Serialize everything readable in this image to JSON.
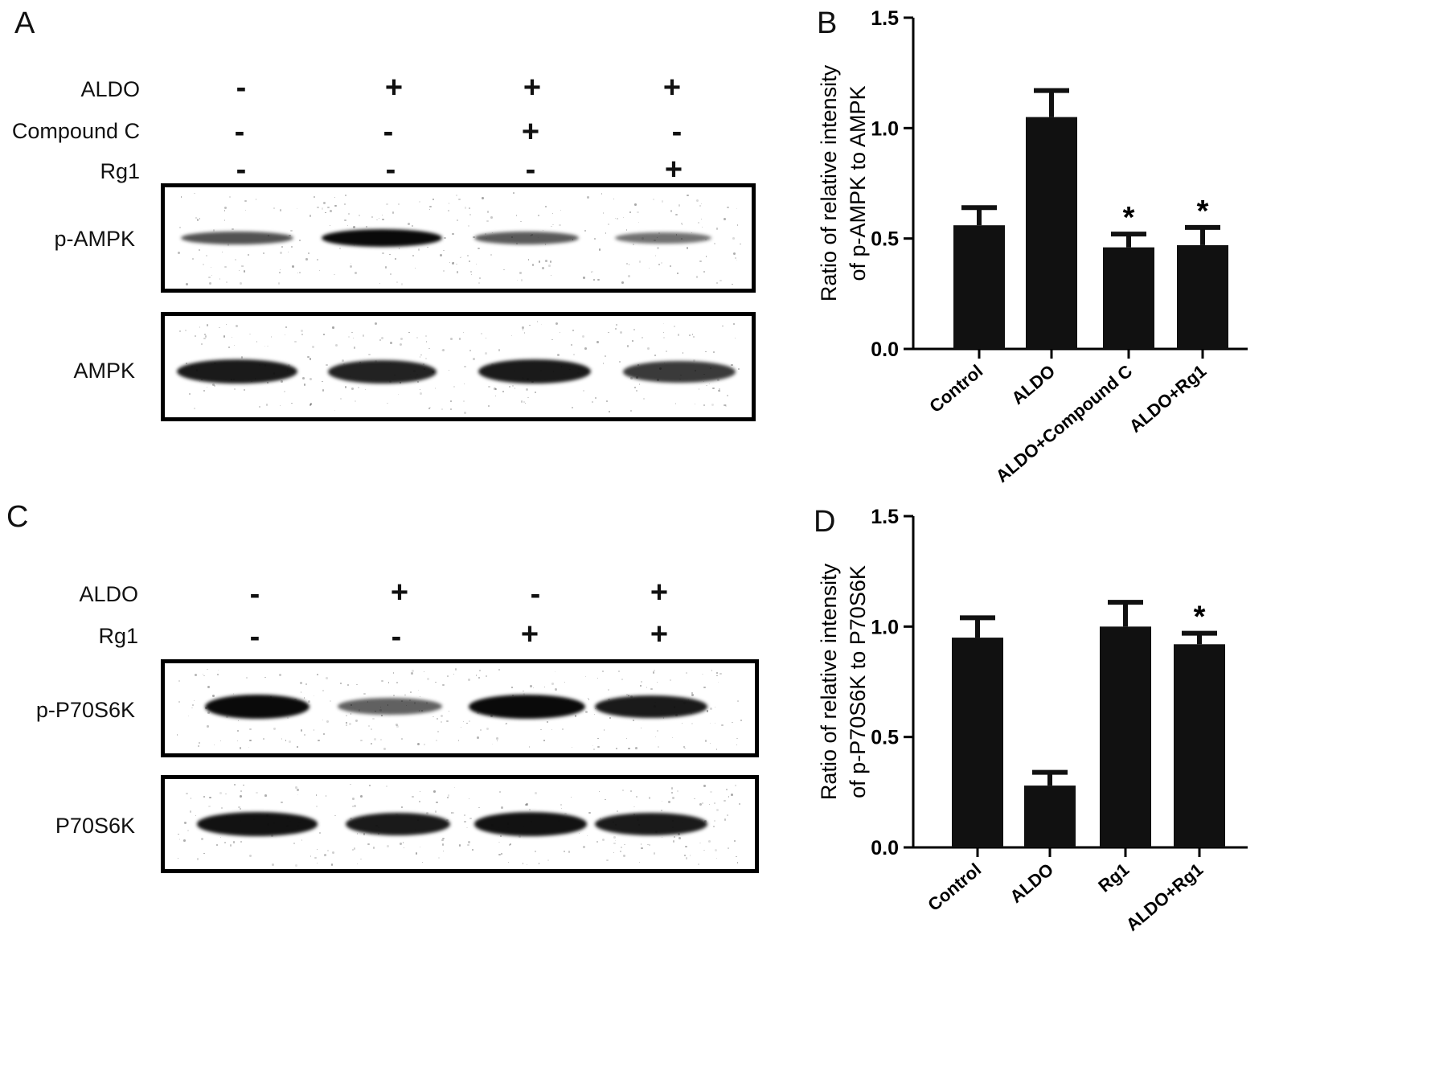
{
  "panels": {
    "A": {
      "letter": "A",
      "conditions": [
        {
          "label": "ALDO",
          "signs": [
            "-",
            "+",
            "+",
            "+"
          ]
        },
        {
          "label": "Compound C",
          "signs": [
            "-",
            "-",
            "+",
            "-"
          ]
        },
        {
          "label": "Rg1",
          "signs": [
            "-",
            "-",
            "-",
            "+"
          ]
        }
      ],
      "blots": [
        {
          "label": "p-AMPK",
          "band_intensity": [
            0.55,
            1.0,
            0.5,
            0.35
          ]
        },
        {
          "label": "AMPK",
          "band_intensity": [
            0.9,
            0.85,
            0.9,
            0.7
          ]
        }
      ]
    },
    "C": {
      "letter": "C",
      "conditions": [
        {
          "label": "ALDO",
          "signs": [
            "-",
            "+",
            "-",
            "+"
          ]
        },
        {
          "label": "Rg1",
          "signs": [
            "-",
            "-",
            "+",
            "+"
          ]
        }
      ],
      "blots": [
        {
          "label": "p-P70S6K",
          "band_intensity": [
            1.0,
            0.45,
            1.0,
            0.9
          ]
        },
        {
          "label": "P70S6K",
          "band_intensity": [
            0.95,
            0.9,
            0.95,
            0.9
          ]
        }
      ]
    }
  },
  "chart_data": [
    {
      "panel": "B",
      "type": "bar",
      "categories": [
        "Control",
        "ALDO",
        "ALDO+Compound C",
        "ALDO+Rg1"
      ],
      "values": [
        0.56,
        1.05,
        0.46,
        0.47
      ],
      "errors": [
        0.08,
        0.12,
        0.06,
        0.08
      ],
      "significance": [
        "",
        "",
        "*",
        "*"
      ],
      "ylabel_lines": [
        "Ratio of relative intensity",
        "of p-AMPK to AMPK"
      ],
      "ylim": [
        0,
        1.5
      ],
      "yticks": [
        "0.0",
        "0.5",
        "1.0",
        "1.5"
      ],
      "bar_color": "#111111"
    },
    {
      "panel": "D",
      "type": "bar",
      "categories": [
        "Control",
        "ALDO",
        "Rg1",
        "ALDO+Rg1"
      ],
      "values": [
        0.95,
        0.28,
        1.0,
        0.92
      ],
      "errors": [
        0.09,
        0.06,
        0.11,
        0.05
      ],
      "significance": [
        "",
        "",
        "",
        "*"
      ],
      "ylabel_lines": [
        "Ratio of relative intensity",
        "of p-P70S6K to P70S6K"
      ],
      "ylim": [
        0,
        1.5
      ],
      "yticks": [
        "0.0",
        "0.5",
        "1.0",
        "1.5"
      ],
      "bar_color": "#111111"
    }
  ],
  "chart_letters": {
    "B": "B",
    "D": "D"
  }
}
